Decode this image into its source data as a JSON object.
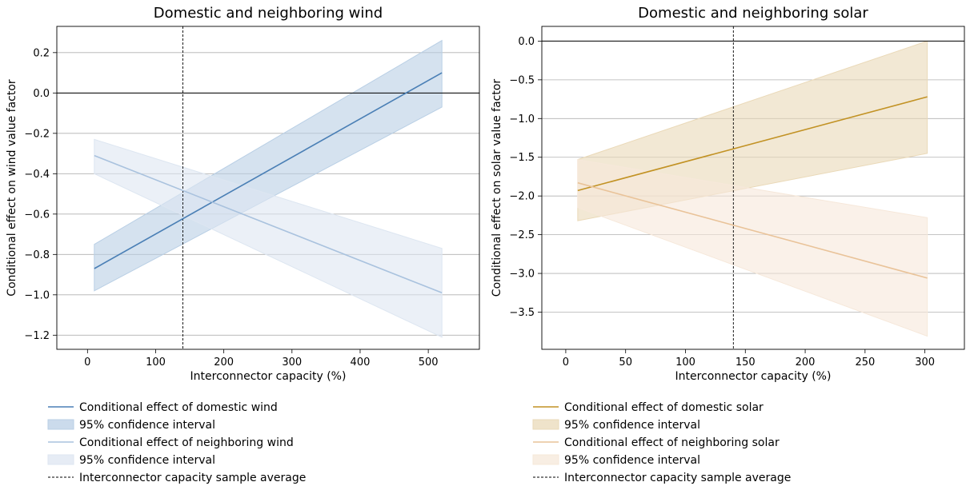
{
  "chart_data": [
    {
      "type": "line",
      "title": "Domestic and neighboring wind",
      "xlabel": "Interconnector capacity (%)",
      "ylabel": "Conditional effect on wind value factor",
      "xlim": [
        -45,
        575
      ],
      "ylim": [
        -1.27,
        0.33
      ],
      "xticks": [
        0,
        100,
        200,
        300,
        400,
        500
      ],
      "yticks": [
        -1.2,
        -1.0,
        -0.8,
        -0.6,
        -0.4,
        -0.2,
        0.0,
        0.2
      ],
      "ytick_labels": [
        "−1.2",
        "−1.0",
        "−0.8",
        "−0.6",
        "−0.4",
        "−0.2",
        "0.0",
        "0.2"
      ],
      "grid": "horizontal",
      "zero_line": true,
      "sample_average_x": 140,
      "series": [
        {
          "name": "Conditional effect of domestic wind",
          "color": "#4a7fb5",
          "x": [
            10,
            520
          ],
          "y": [
            -0.87,
            0.1
          ],
          "ci_name": "95% confidence interval",
          "ci_color": "#b9cfe5",
          "ci_lower": [
            -0.98,
            -0.07
          ],
          "ci_upper": [
            -0.75,
            0.26
          ]
        },
        {
          "name": "Conditional effect of neighboring wind",
          "color": "#a9c2de",
          "x": [
            10,
            520
          ],
          "y": [
            -0.31,
            -0.99
          ],
          "ci_name": "95% confidence interval",
          "ci_color": "#dde6f1",
          "ci_lower": [
            -0.4,
            -1.21
          ],
          "ci_upper": [
            -0.23,
            -0.77
          ]
        }
      ],
      "legend": [
        {
          "kind": "line",
          "label": "Conditional effect of domestic wind",
          "color": "#4a7fb5"
        },
        {
          "kind": "patch",
          "label": "95% confidence interval",
          "color": "#b9cfe5"
        },
        {
          "kind": "line",
          "label": "Conditional effect of neighboring wind",
          "color": "#a9c2de"
        },
        {
          "kind": "patch",
          "label": "95% confidence interval",
          "color": "#dde6f1"
        },
        {
          "kind": "dashed",
          "label": "Interconnector capacity sample average",
          "color": "#000000"
        }
      ],
      "legend_position": "below"
    },
    {
      "type": "line",
      "title": "Domestic and neighboring solar",
      "xlabel": "Interconnector capacity (%)",
      "ylabel": "Conditional effect on solar value factor",
      "xlim": [
        -20,
        333
      ],
      "ylim": [
        -3.98,
        0.19
      ],
      "xticks": [
        0,
        50,
        100,
        150,
        200,
        250,
        300
      ],
      "yticks": [
        -3.5,
        -3.0,
        -2.5,
        -2.0,
        -1.5,
        -1.0,
        -0.5,
        0.0
      ],
      "ytick_labels": [
        "−3.5",
        "−3.0",
        "−2.5",
        "−2.0",
        "−1.5",
        "−1.0",
        "−0.5",
        "0.0"
      ],
      "grid": "horizontal",
      "zero_line": true,
      "sample_average_x": 140,
      "series": [
        {
          "name": "Conditional effect of domestic solar",
          "color": "#c29224",
          "x": [
            10,
            302
          ],
          "y": [
            -1.93,
            -0.72
          ],
          "ci_name": "95% confidence interval",
          "ci_color": "#ead9b8",
          "ci_lower": [
            -2.32,
            -1.45
          ],
          "ci_upper": [
            -1.53,
            0.0
          ]
        },
        {
          "name": "Conditional effect of neighboring solar",
          "color": "#e9c399",
          "x": [
            10,
            302
          ],
          "y": [
            -1.83,
            -3.06
          ],
          "ci_name": "95% confidence interval",
          "ci_color": "#f6e8da",
          "ci_lower": [
            -2.15,
            -3.81
          ],
          "ci_upper": [
            -1.53,
            -2.28
          ]
        }
      ],
      "legend": [
        {
          "kind": "line",
          "label": "Conditional effect of domestic solar",
          "color": "#c29224"
        },
        {
          "kind": "patch",
          "label": "95% confidence interval",
          "color": "#ead9b8"
        },
        {
          "kind": "line",
          "label": "Conditional effect of neighboring solar",
          "color": "#e9c399"
        },
        {
          "kind": "patch",
          "label": "95% confidence interval",
          "color": "#f6e8da"
        },
        {
          "kind": "dashed",
          "label": "Interconnector capacity sample average",
          "color": "#000000"
        }
      ],
      "legend_position": "below"
    }
  ]
}
